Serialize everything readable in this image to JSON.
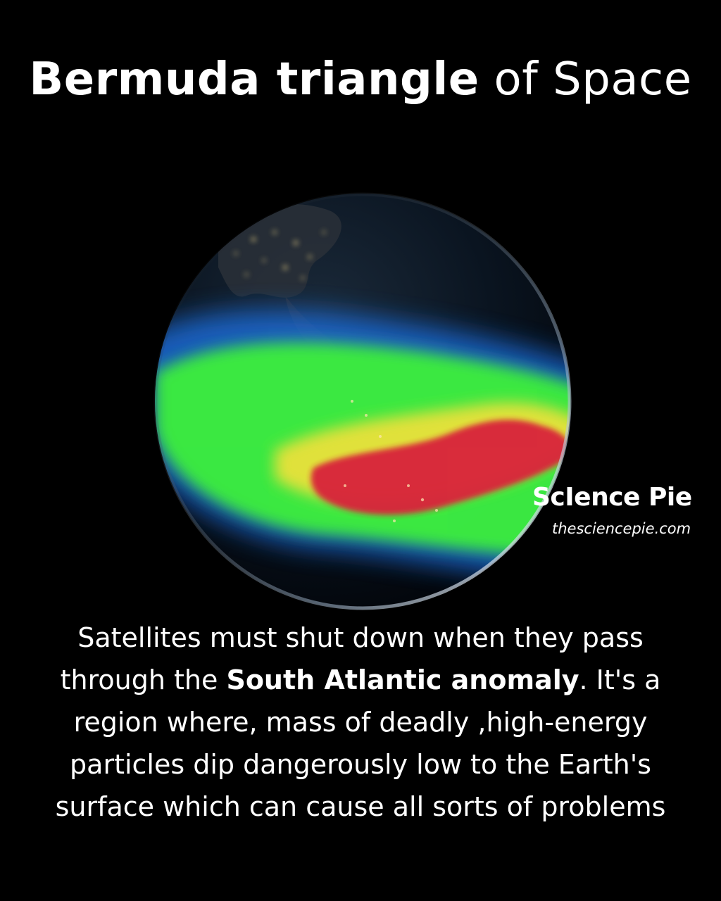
{
  "title": {
    "bold_part": "Bermuda triangle",
    "regular_part": "of Space"
  },
  "brand": {
    "name": "ScIence Pie",
    "url": "thesciencepie.com"
  },
  "caption": {
    "part1": "Satellites must shut down when they pass through the ",
    "highlight": "South Atlantic anomaly",
    "part2": ". It's a region where, mass of deadly ,high-energy particles dip dangerously low to the Earth's surface which can cause all sorts of problems"
  },
  "colors": {
    "background": "#000000",
    "text": "#ffffff",
    "anomaly_core": "#d8203a",
    "anomaly_mid": "#e9e13a",
    "anomaly_outer": "#3ef03a",
    "anomaly_edge": "#1f6fe0"
  }
}
